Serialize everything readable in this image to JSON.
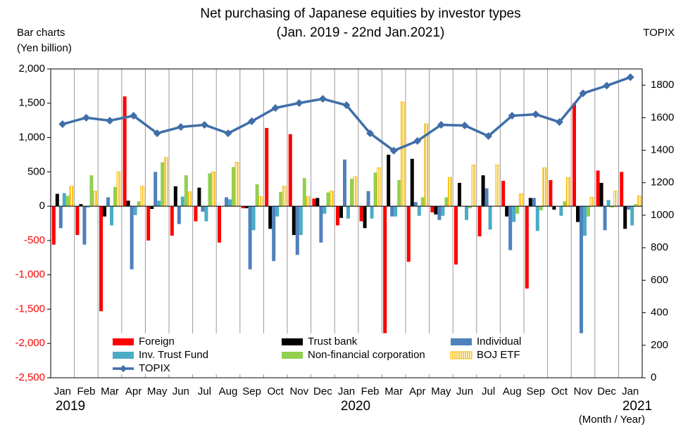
{
  "chart_data": {
    "type": "bar-line",
    "title": "Net purchasing of Japanese equities by investor types",
    "subtitle": "(Jan. 2019 - 22nd Jan.2021)",
    "y_label": [
      "Bar charts",
      "(Yen billion)"
    ],
    "y2_label": "TOPIX",
    "x_label": "(Month / Year)",
    "categories": [
      "Jan",
      "Feb",
      "Mar",
      "Apr",
      "May",
      "Jun",
      "Jul",
      "Aug",
      "Sep",
      "Oct",
      "Nov",
      "Dec",
      "Jan",
      "Feb",
      "Mar",
      "Apr",
      "May",
      "Jun",
      "Jul",
      "Aug",
      "Sep",
      "Oct",
      "Nov",
      "Dec",
      "Jan"
    ],
    "years": [
      "2019",
      "2020",
      "2021"
    ],
    "ylim": [
      -2500,
      2000
    ],
    "yticks": [
      {
        "value": -2500,
        "label": "-2,500"
      },
      {
        "value": -2000,
        "label": "-2,000"
      },
      {
        "value": -1500,
        "label": "-1,500"
      },
      {
        "value": -1000,
        "label": "-1,000"
      },
      -500,
      0,
      500,
      {
        "value": 1000,
        "label": "1,000"
      },
      {
        "value": 1500,
        "label": "1,500"
      },
      {
        "value": 2000,
        "label": "2,000"
      }
    ],
    "y2lim": [
      0,
      1900
    ],
    "y2ticks": [
      0,
      200,
      400,
      600,
      800,
      1000,
      1200,
      1400,
      1600,
      1800
    ],
    "grid": true,
    "series": [
      {
        "name": "Foreign",
        "color": "#ff0000",
        "values": [
          -560,
          -420,
          -1530,
          1600,
          -500,
          -430,
          -220,
          -530,
          -30,
          1140,
          1050,
          110,
          -280,
          -220,
          -1850,
          -810,
          -90,
          -850,
          -440,
          370,
          -1200,
          380,
          1500,
          520,
          500
        ]
      },
      {
        "name": "Trust bank",
        "color": "#000000",
        "values": [
          180,
          30,
          -150,
          80,
          -40,
          290,
          270,
          0,
          -30,
          -330,
          -420,
          120,
          -170,
          -320,
          750,
          690,
          -120,
          340,
          450,
          -150,
          120,
          -50,
          -230,
          340,
          -330
        ]
      },
      {
        "name": "Individual",
        "color": "#4f81bd",
        "values": [
          -320,
          -560,
          130,
          -920,
          500,
          -260,
          -80,
          130,
          -920,
          -800,
          -710,
          -530,
          680,
          220,
          -150,
          60,
          -200,
          0,
          260,
          -640,
          120,
          0,
          -1850,
          -350,
          -50
        ]
      },
      {
        "name": "Inv. Trust Fund",
        "color": "#4bacc6",
        "values": [
          190,
          -20,
          -280,
          -130,
          80,
          140,
          -220,
          100,
          -350,
          -150,
          -420,
          -110,
          -180,
          -180,
          -150,
          -140,
          -140,
          -200,
          -340,
          -230,
          -360,
          -140,
          -430,
          90,
          -280
        ]
      },
      {
        "name": "Non-financial corporation",
        "color": "#92d050",
        "values": [
          150,
          450,
          280,
          70,
          640,
          450,
          480,
          570,
          320,
          210,
          410,
          200,
          400,
          490,
          380,
          130,
          130,
          -30,
          0,
          -110,
          -60,
          70,
          -150,
          -20,
          30
        ]
      },
      {
        "name": "BOJ ETF",
        "color": "#f5b800",
        "values": [
          290,
          220,
          500,
          290,
          710,
          210,
          500,
          640,
          140,
          290,
          140,
          220,
          430,
          560,
          1520,
          1200,
          420,
          600,
          600,
          180,
          560,
          420,
          130,
          220,
          150
        ]
      },
      {
        "name": "TOPIX",
        "color": "#3f6ea8",
        "axis": "y2",
        "type": "line",
        "values": [
          1560,
          1600,
          1582,
          1612,
          1504,
          1543,
          1556,
          1504,
          1578,
          1660,
          1690,
          1716,
          1677,
          1504,
          1397,
          1457,
          1556,
          1552,
          1487,
          1612,
          1621,
          1573,
          1750,
          1797,
          1849
        ]
      }
    ]
  }
}
